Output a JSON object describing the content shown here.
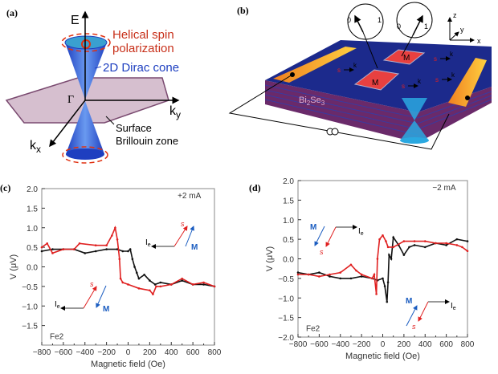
{
  "panels": {
    "a": {
      "label": "(a)",
      "energy_axis": "E",
      "helical_1": "Helical spin",
      "helical_2": "polarization",
      "dirac": "2D Dirac cone",
      "gamma": "Γ",
      "ky": "k",
      "ky_sub": "y",
      "kx": "k",
      "kx_sub": "x",
      "surface_1": "Surface",
      "surface_2": "Brillouin zone",
      "colors": {
        "cone": "#2e5fe0",
        "zone": "#b48aa8",
        "spin": "#c8301a"
      }
    },
    "b": {
      "label": "(b)",
      "material": "Bi",
      "material_sub1": "2",
      "material_mid": "Se",
      "material_sub2": "3",
      "meter_0": "0",
      "meter_1": "1",
      "magnet": "M",
      "spin": "s",
      "momentum": "k",
      "axis_x": "x",
      "axis_y": "y",
      "axis_z": "z",
      "colors": {
        "slab": "#1c2a8c",
        "contact": "#f0a020",
        "magnet": "#e84040",
        "cone": "#2aa8e0"
      }
    }
  },
  "chart_data": [
    {
      "panel": "(c)",
      "type": "line",
      "xlabel": "Magnetic field (Oe)",
      "ylabel": "V (μV)",
      "xlim": [
        -800,
        800
      ],
      "ylim": [
        -2.0,
        2.0
      ],
      "xticks": [
        "−800",
        "−600",
        "−400",
        "−200",
        "0",
        "200",
        "400",
        "600",
        "800"
      ],
      "yticks": [
        "2.0",
        "1.5",
        "1.0",
        "0.5",
        "0.0",
        "−0.5",
        "−1.0",
        "−1.5"
      ],
      "annotation_current": "+2 mA",
      "annotation_sample": "Fe2",
      "arrow_labels": {
        "current": "I",
        "current_sub": "e",
        "spin": "s",
        "magnetization": "M"
      },
      "series": [
        {
          "color": "#111111",
          "x": [
            -800,
            -700,
            -600,
            -500,
            -400,
            -300,
            -200,
            -100,
            -50,
            0,
            20,
            40,
            60,
            80,
            100,
            150,
            200,
            250,
            300,
            400,
            500,
            600,
            700,
            800
          ],
          "y": [
            0.4,
            0.45,
            0.45,
            0.45,
            0.35,
            0.4,
            0.45,
            0.45,
            0.4,
            0.4,
            0.45,
            0.2,
            0.0,
            -0.15,
            -0.3,
            -0.2,
            -0.35,
            -0.45,
            -0.4,
            -0.45,
            -0.35,
            -0.45,
            -0.45,
            -0.5
          ]
        },
        {
          "color": "#e02020",
          "x": [
            -800,
            -750,
            -700,
            -600,
            -500,
            -450,
            -300,
            -200,
            -150,
            -120,
            -100,
            -80,
            -70,
            -50,
            0,
            100,
            200,
            230,
            260,
            300,
            400,
            500,
            600,
            700,
            800
          ],
          "y": [
            0.5,
            0.6,
            0.35,
            0.45,
            0.45,
            0.6,
            0.55,
            0.55,
            0.8,
            1.0,
            0.7,
            0.2,
            -0.3,
            -0.4,
            -0.45,
            -0.55,
            -0.6,
            -0.7,
            -0.5,
            -0.5,
            -0.45,
            -0.3,
            -0.45,
            -0.4,
            -0.5
          ]
        }
      ]
    },
    {
      "panel": "(d)",
      "type": "line",
      "xlabel": "Magnetic field (Oe)",
      "ylabel": "V (μV)",
      "xlim": [
        -800,
        800
      ],
      "ylim": [
        -2.0,
        2.0
      ],
      "xticks": [
        "−800",
        "−600",
        "−400",
        "−200",
        "0",
        "200",
        "400",
        "600",
        "800"
      ],
      "yticks": [
        "2.0",
        "1.5",
        "1.0",
        "0.5",
        "0.0",
        "−0.5",
        "−1.0",
        "−1.5",
        "−2.0"
      ],
      "annotation_current": "−2 mA",
      "annotation_sample": "Fe2",
      "arrow_labels": {
        "current": "I",
        "current_sub": "e",
        "spin": "s",
        "magnetization": "M"
      },
      "series": [
        {
          "color": "#111111",
          "x": [
            -800,
            -700,
            -600,
            -500,
            -400,
            -300,
            -200,
            -100,
            -50,
            0,
            20,
            40,
            50,
            60,
            80,
            100,
            150,
            200,
            250,
            300,
            400,
            500,
            600,
            700,
            800
          ],
          "y": [
            -0.35,
            -0.4,
            -0.35,
            -0.45,
            -0.5,
            -0.5,
            -0.45,
            -0.5,
            -0.55,
            -0.5,
            -0.7,
            -1.1,
            -0.6,
            0.1,
            0.0,
            0.55,
            0.35,
            0.1,
            0.3,
            0.35,
            0.3,
            0.4,
            0.35,
            0.5,
            0.45
          ]
        },
        {
          "color": "#e02020",
          "x": [
            -800,
            -700,
            -600,
            -500,
            -400,
            -300,
            -250,
            -200,
            -100,
            -80,
            -60,
            -50,
            -30,
            0,
            30,
            50,
            100,
            200,
            300,
            400,
            500,
            600,
            700,
            750,
            800
          ],
          "y": [
            -0.4,
            -0.4,
            -0.45,
            -0.4,
            -0.35,
            -0.15,
            -0.3,
            -0.4,
            -0.5,
            -0.4,
            -0.9,
            0.0,
            0.5,
            0.6,
            0.45,
            0.3,
            0.3,
            0.45,
            0.45,
            0.45,
            0.4,
            0.4,
            0.35,
            0.3,
            0.2
          ]
        }
      ]
    }
  ]
}
